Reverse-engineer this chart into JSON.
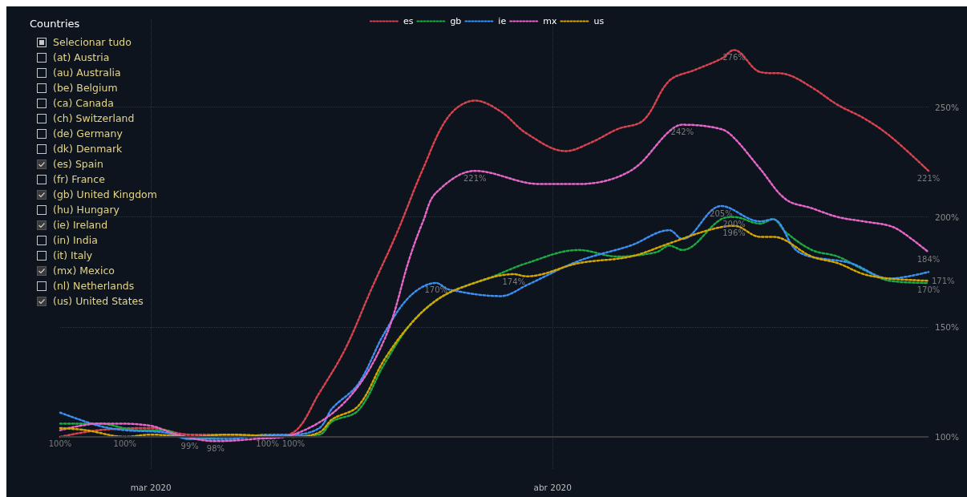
{
  "chart_data": [
    {
      "type": "other",
      "title": "Countries",
      "categories": [
        "Selecionar tudo",
        "(at) Austria",
        "(au) Australia",
        "(be) Belgium",
        "(ca) Canada",
        "(ch) Switzerland",
        "(de) Germany",
        "(dk) Denmark",
        "(es) Spain",
        "(fr) France",
        "(gb) United Kingdom",
        "(hu) Hungary",
        "(ie) Ireland",
        "(in) India",
        "(it) Italy",
        "(mx) Mexico",
        "(nl) Netherlands",
        "(us) United States"
      ]
    },
    {
      "type": "line",
      "line_style": "dotted",
      "legend": "top",
      "grid": true,
      "xlim": [
        "2020-02-23",
        "2020-04-30"
      ],
      "xticks": [
        {
          "value": "2020-03-01",
          "label": "mar 2020"
        },
        {
          "value": "2020-04-01",
          "label": "abr 2020"
        }
      ],
      "ylim": [
        85,
        290
      ],
      "yticks": [
        {
          "value": 100,
          "label": "100%"
        },
        {
          "value": 150,
          "label": "150%"
        },
        {
          "value": 200,
          "label": "200%"
        },
        {
          "value": 250,
          "label": "250%"
        }
      ],
      "ref_lines": [
        {
          "axis": "y",
          "value": 100,
          "color": "#3c3c3c",
          "line_style": "solid"
        }
      ],
      "series": [
        {
          "name": "es",
          "color": "#d6434e",
          "x": [
            "2020-02-23",
            "2020-02-26",
            "2020-03-01",
            "2020-03-04",
            "2020-03-07",
            "2020-03-10",
            "2020-03-12",
            "2020-03-14",
            "2020-03-16",
            "2020-03-18",
            "2020-03-20",
            "2020-03-22",
            "2020-03-24",
            "2020-03-26",
            "2020-03-28",
            "2020-03-30",
            "2020-04-02",
            "2020-04-04",
            "2020-04-06",
            "2020-04-08",
            "2020-04-10",
            "2020-04-12",
            "2020-04-14",
            "2020-04-15",
            "2020-04-17",
            "2020-04-19",
            "2020-04-21",
            "2020-04-23",
            "2020-04-25",
            "2020-04-27",
            "2020-04-30"
          ],
          "values": [
            100,
            103,
            104,
            101,
            101,
            100,
            102,
            120,
            140,
            167,
            193,
            222,
            246,
            253,
            248,
            238,
            230,
            234,
            240,
            244,
            262,
            267,
            272,
            276,
            266,
            265,
            259,
            251,
            245,
            237,
            221
          ],
          "value_labels": [
            "100%",
            null,
            null,
            null,
            null,
            "100%",
            null,
            null,
            null,
            null,
            null,
            null,
            null,
            null,
            null,
            null,
            null,
            null,
            null,
            null,
            null,
            null,
            null,
            "276%",
            null,
            null,
            null,
            null,
            null,
            null,
            "221%"
          ]
        },
        {
          "name": "gb",
          "color": "#1ca843",
          "x": [
            "2020-02-23",
            "2020-02-26",
            "2020-02-29",
            "2020-03-02",
            "2020-03-04",
            "2020-03-07",
            "2020-03-10",
            "2020-03-14",
            "2020-03-15",
            "2020-03-17",
            "2020-03-19",
            "2020-03-21",
            "2020-03-23",
            "2020-03-25",
            "2020-03-27",
            "2020-03-30",
            "2020-04-03",
            "2020-04-06",
            "2020-04-09",
            "2020-04-10",
            "2020-04-11",
            "2020-04-14",
            "2020-04-15",
            "2020-04-17",
            "2020-04-18",
            "2020-04-19",
            "2020-04-21",
            "2020-04-23",
            "2020-04-25",
            "2020-04-27",
            "2020-04-30"
          ],
          "values": [
            106,
            106,
            103,
            103,
            99,
            100,
            100,
            101,
            107,
            112,
            133,
            151,
            162,
            168,
            172,
            179,
            185,
            182,
            184,
            187,
            185,
            199,
            200,
            197,
            199,
            193,
            185,
            182,
            176,
            171,
            170
          ],
          "value_labels": [
            null,
            null,
            null,
            null,
            "99%",
            null,
            null,
            null,
            null,
            null,
            null,
            null,
            null,
            null,
            null,
            null,
            null,
            null,
            null,
            null,
            null,
            null,
            "200%",
            null,
            null,
            null,
            null,
            null,
            null,
            null,
            "170%"
          ]
        },
        {
          "name": "ie",
          "color": "#3b8ff0",
          "x": [
            "2020-02-23",
            "2020-02-26",
            "2020-02-28",
            "2020-03-02",
            "2020-03-04",
            "2020-03-07",
            "2020-03-10",
            "2020-03-12",
            "2020-03-14",
            "2020-03-15",
            "2020-03-17",
            "2020-03-19",
            "2020-03-21",
            "2020-03-23",
            "2020-03-24",
            "2020-03-28",
            "2020-03-30",
            "2020-04-03",
            "2020-04-07",
            "2020-04-10",
            "2020-04-11",
            "2020-04-14",
            "2020-04-17",
            "2020-04-18",
            "2020-04-20",
            "2020-04-24",
            "2020-04-27",
            "2020-04-30"
          ],
          "values": [
            111,
            105,
            103,
            102,
            99,
            99,
            101,
            101,
            104,
            113,
            124,
            147,
            164,
            170,
            167,
            164,
            169,
            180,
            187,
            194,
            190,
            205,
            198,
            199,
            184,
            179,
            172,
            175
          ],
          "value_labels": [
            null,
            null,
            null,
            null,
            null,
            null,
            null,
            null,
            null,
            null,
            null,
            null,
            null,
            "170%",
            null,
            null,
            null,
            null,
            null,
            null,
            null,
            "205%",
            null,
            null,
            null,
            null,
            null,
            null
          ]
        },
        {
          "name": "mx",
          "color": "#e466c6",
          "x": [
            "2020-02-23",
            "2020-02-26",
            "2020-02-27",
            "2020-03-01",
            "2020-03-03",
            "2020-03-06",
            "2020-03-09",
            "2020-03-12",
            "2020-03-16",
            "2020-03-19",
            "2020-03-21",
            "2020-03-22",
            "2020-03-23",
            "2020-03-26",
            "2020-03-31",
            "2020-04-03",
            "2020-04-07",
            "2020-04-10",
            "2020-04-11",
            "2020-04-14",
            "2020-04-15",
            "2020-04-17",
            "2020-04-19",
            "2020-04-21",
            "2020-04-23",
            "2020-04-25",
            "2020-04-27",
            "2020-04-28",
            "2020-04-30"
          ],
          "values": [
            103,
            106,
            106,
            105,
            101,
            98,
            99,
            101,
            116,
            144,
            182,
            198,
            211,
            221,
            215,
            215,
            221,
            239,
            242,
            240,
            236,
            222,
            208,
            204,
            200,
            198,
            196,
            193,
            184
          ],
          "value_labels": [
            null,
            null,
            null,
            null,
            null,
            "98%",
            null,
            null,
            null,
            null,
            null,
            null,
            null,
            "221%",
            null,
            null,
            null,
            null,
            "242%",
            null,
            null,
            null,
            null,
            null,
            null,
            null,
            null,
            null,
            "184%"
          ]
        },
        {
          "name": "us",
          "color": "#d4a400",
          "x": [
            "2020-02-23",
            "2020-02-25",
            "2020-02-28",
            "2020-03-01",
            "2020-03-04",
            "2020-03-07",
            "2020-03-12",
            "2020-03-14",
            "2020-03-15",
            "2020-03-17",
            "2020-03-19",
            "2020-03-21",
            "2020-03-23",
            "2020-03-25",
            "2020-03-29",
            "2020-03-30",
            "2020-04-03",
            "2020-04-07",
            "2020-04-10",
            "2020-04-13",
            "2020-04-15",
            "2020-04-17",
            "2020-04-18",
            "2020-04-21",
            "2020-04-23",
            "2020-04-25",
            "2020-04-27",
            "2020-04-30"
          ],
          "values": [
            104,
            103,
            100,
            101,
            100,
            101,
            100,
            102,
            108,
            114,
            135,
            151,
            162,
            168,
            174,
            173,
            179,
            182,
            188,
            194,
            196,
            191,
            191,
            182,
            179,
            174,
            172,
            171
          ],
          "value_labels": [
            null,
            null,
            "100%",
            null,
            null,
            null,
            "100%",
            null,
            null,
            null,
            null,
            null,
            null,
            null,
            "174%",
            null,
            null,
            null,
            null,
            null,
            "196%",
            null,
            null,
            null,
            null,
            null,
            null,
            "171%"
          ]
        }
      ]
    }
  ]
}
